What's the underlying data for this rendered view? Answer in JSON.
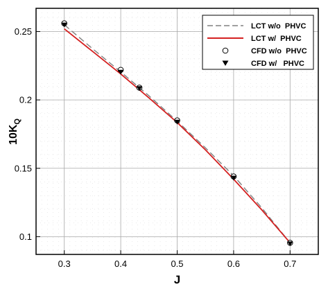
{
  "chart_data": {
    "type": "line",
    "title": "",
    "xlabel": "J",
    "ylabel_main": "10K",
    "ylabel_sub": "Q",
    "xlim": [
      0.25,
      0.75
    ],
    "ylim": [
      0.087,
      0.267
    ],
    "x_ticks": [
      {
        "value": 0.3,
        "label": "0.3"
      },
      {
        "value": 0.4,
        "label": "0.4"
      },
      {
        "value": 0.5,
        "label": "0.5"
      },
      {
        "value": 0.6,
        "label": "0.6"
      },
      {
        "value": 0.7,
        "label": "0.7"
      }
    ],
    "y_ticks": [
      {
        "value": 0.1,
        "label": "0.1"
      },
      {
        "value": 0.15,
        "label": "0.15"
      },
      {
        "value": 0.2,
        "label": "0.2"
      },
      {
        "value": 0.25,
        "label": "0.25"
      }
    ],
    "grid": true,
    "legend_position": "top-right",
    "series": [
      {
        "name": "LCT w/o  PHVC",
        "style": "dashed",
        "color": "#808080",
        "x": [
          0.3,
          0.35,
          0.4,
          0.45,
          0.5,
          0.55,
          0.6,
          0.65,
          0.7
        ],
        "y": [
          0.255,
          0.2375,
          0.2205,
          0.203,
          0.1845,
          0.165,
          0.1445,
          0.121,
          0.0955
        ]
      },
      {
        "name": "LCT w/  PHVC",
        "style": "solid",
        "color": "#d42020",
        "x": [
          0.3,
          0.35,
          0.4,
          0.45,
          0.5,
          0.55,
          0.6,
          0.65,
          0.7
        ],
        "y": [
          0.252,
          0.2355,
          0.219,
          0.2015,
          0.1835,
          0.1635,
          0.142,
          0.1195,
          0.0955
        ]
      },
      {
        "name": "CFD w/o  PHVC",
        "style": "marker-open-circle",
        "color": "#000000",
        "x": [
          0.3,
          0.4,
          0.433,
          0.5,
          0.6,
          0.7
        ],
        "y": [
          0.256,
          0.222,
          0.209,
          0.185,
          0.144,
          0.0955
        ]
      },
      {
        "name": "CFD w/   PHVC",
        "style": "marker-filled-triangle",
        "color": "#000000",
        "x": [
          0.3,
          0.4,
          0.433,
          0.5,
          0.6,
          0.7
        ],
        "y": [
          0.255,
          0.2205,
          0.2085,
          0.184,
          0.143,
          0.095
        ]
      }
    ]
  }
}
